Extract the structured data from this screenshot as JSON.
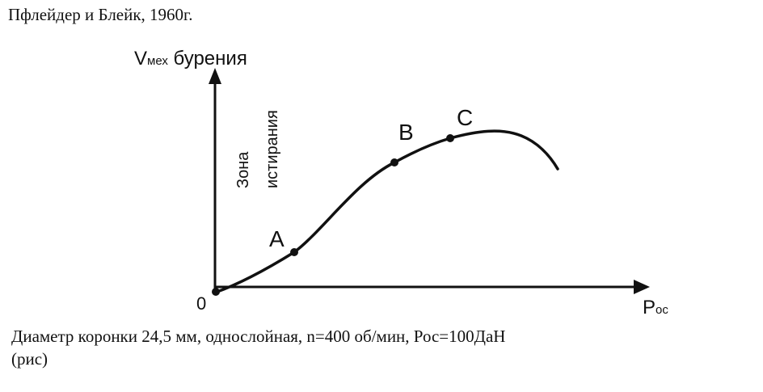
{
  "header": {
    "text": "Пфлейдер и Блейк, 1960г."
  },
  "diagram": {
    "y_axis_label_main": "V",
    "y_axis_label_sub": "мех",
    "y_axis_label_rest": " бурения",
    "x_axis_label_main": "P",
    "x_axis_label_sub": "ос",
    "origin_label": "0",
    "zone_label_line1": "Зона",
    "zone_label_line2": "истирания",
    "point_a": "A",
    "point_b": "B",
    "point_c": "C"
  },
  "caption": {
    "line1": "Диаметр коронки 24,5 мм, однослойная, n=400 об/мин, Рос=100ДаН",
    "line2": "(рис)"
  }
}
